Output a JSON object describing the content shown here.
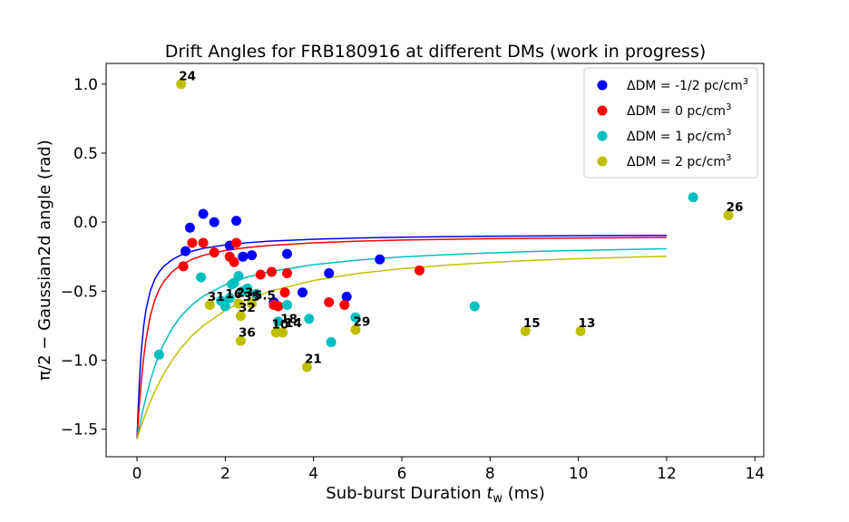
{
  "chart_data": {
    "type": "scatter",
    "title": "Drift Angles for FRB180916 at different DMs (work in progress)",
    "xlabel": "Sub-burst Duration ",
    "xlabel_var": "t",
    "xlabel_sub": "w",
    "xlabel_unit": " (ms)",
    "ylabel": "π/2 −  Gaussian2d angle (rad)",
    "xlim": [
      -0.7,
      14.2
    ],
    "ylim": [
      -1.7,
      1.15
    ],
    "xticks": [
      0,
      2,
      4,
      6,
      8,
      10,
      12,
      14
    ],
    "yticks": [
      -1.5,
      -1.0,
      -0.5,
      0.0,
      0.5,
      1.0
    ],
    "grid": false,
    "legend_position": "top-right",
    "series": [
      {
        "name": "ΔDM = -1/2 pc/cm",
        "name_sup": "3",
        "color": "#0000ff",
        "points": [
          [
            1.1,
            -0.21
          ],
          [
            1.2,
            -0.04
          ],
          [
            1.5,
            0.06
          ],
          [
            1.75,
            0.0
          ],
          [
            2.1,
            -0.17
          ],
          [
            2.25,
            0.01
          ],
          [
            2.4,
            -0.25
          ],
          [
            2.6,
            -0.24
          ],
          [
            3.1,
            -0.58
          ],
          [
            3.4,
            -0.23
          ],
          [
            3.75,
            -0.51
          ],
          [
            4.35,
            -0.37
          ],
          [
            4.75,
            -0.54
          ],
          [
            5.5,
            -0.27
          ]
        ],
        "curve": [
          [
            0.0,
            -1.571
          ],
          [
            0.025,
            -1.366
          ],
          [
            0.05,
            -1.187
          ],
          [
            0.075,
            -1.041
          ],
          [
            0.1,
            -0.925
          ],
          [
            0.15,
            -0.756
          ],
          [
            0.2,
            -0.641
          ],
          [
            0.3,
            -0.499
          ],
          [
            0.4,
            -0.416
          ],
          [
            0.5,
            -0.361
          ],
          [
            0.6,
            -0.322
          ],
          [
            0.8,
            -0.271
          ],
          [
            1.0,
            -0.238
          ],
          [
            1.25,
            -0.21
          ],
          [
            1.5,
            -0.19
          ],
          [
            2.0,
            -0.165
          ],
          [
            2.5,
            -0.149
          ],
          [
            3.0,
            -0.138
          ],
          [
            4.0,
            -0.124
          ],
          [
            5.0,
            -0.115
          ],
          [
            6.0,
            -0.109
          ],
          [
            7.0,
            -0.105
          ],
          [
            8.0,
            -0.102
          ],
          [
            9.0,
            -0.1
          ],
          [
            10.0,
            -0.098
          ],
          [
            11.0,
            -0.097
          ],
          [
            12.0,
            -0.096
          ]
        ]
      },
      {
        "name": "ΔDM = 0 pc/cm",
        "name_sup": "3",
        "color": "#ff0000",
        "points": [
          [
            1.05,
            -0.32
          ],
          [
            1.25,
            -0.15
          ],
          [
            1.5,
            -0.15
          ],
          [
            1.75,
            -0.22
          ],
          [
            2.1,
            -0.25
          ],
          [
            2.2,
            -0.29
          ],
          [
            2.25,
            -0.15
          ],
          [
            2.8,
            -0.38
          ],
          [
            3.05,
            -0.36
          ],
          [
            3.1,
            -0.6
          ],
          [
            3.2,
            -0.61
          ],
          [
            3.35,
            -0.51
          ],
          [
            3.4,
            -0.37
          ],
          [
            4.35,
            -0.58
          ],
          [
            4.7,
            -0.6
          ],
          [
            6.4,
            -0.35
          ]
        ],
        "curve": [
          [
            0.0,
            -1.571
          ],
          [
            0.025,
            -1.453
          ],
          [
            0.05,
            -1.34
          ],
          [
            0.075,
            -1.237
          ],
          [
            0.1,
            -1.143
          ],
          [
            0.15,
            -0.984
          ],
          [
            0.2,
            -0.858
          ],
          [
            0.3,
            -0.681
          ],
          [
            0.4,
            -0.567
          ],
          [
            0.5,
            -0.489
          ],
          [
            0.6,
            -0.433
          ],
          [
            0.8,
            -0.358
          ],
          [
            1.0,
            -0.31
          ],
          [
            1.25,
            -0.269
          ],
          [
            1.5,
            -0.241
          ],
          [
            2.0,
            -0.205
          ],
          [
            2.5,
            -0.184
          ],
          [
            3.0,
            -0.169
          ],
          [
            4.0,
            -0.15
          ],
          [
            5.0,
            -0.138
          ],
          [
            6.0,
            -0.13
          ],
          [
            7.0,
            -0.125
          ],
          [
            8.0,
            -0.12
          ],
          [
            9.0,
            -0.117
          ],
          [
            10.0,
            -0.115
          ],
          [
            11.0,
            -0.113
          ],
          [
            12.0,
            -0.111
          ]
        ]
      },
      {
        "name": "ΔDM = 1 pc/cm",
        "name_sup": "3",
        "color": "#00bfbf",
        "points": [
          [
            0.5,
            -0.96
          ],
          [
            1.45,
            -0.4
          ],
          [
            1.9,
            -0.57
          ],
          [
            2.0,
            -0.61
          ],
          [
            2.1,
            -0.55
          ],
          [
            2.15,
            -0.45
          ],
          [
            2.2,
            -0.44
          ],
          [
            2.3,
            -0.39
          ],
          [
            2.4,
            -0.5
          ],
          [
            2.5,
            -0.48
          ],
          [
            2.7,
            -0.52
          ],
          [
            3.2,
            -0.72
          ],
          [
            3.4,
            -0.6
          ],
          [
            3.9,
            -0.7
          ],
          [
            4.4,
            -0.87
          ],
          [
            4.95,
            -0.69
          ],
          [
            7.65,
            -0.61
          ],
          [
            12.6,
            0.18
          ]
        ],
        "curve": [
          [
            0.0,
            -1.571
          ],
          [
            0.05,
            -1.49
          ],
          [
            0.1,
            -1.412
          ],
          [
            0.15,
            -1.339
          ],
          [
            0.2,
            -1.271
          ],
          [
            0.3,
            -1.15
          ],
          [
            0.4,
            -1.047
          ],
          [
            0.5,
            -0.96
          ],
          [
            0.6,
            -0.886
          ],
          [
            0.8,
            -0.768
          ],
          [
            1.0,
            -0.68
          ],
          [
            1.25,
            -0.598
          ],
          [
            1.5,
            -0.537
          ],
          [
            2.0,
            -0.453
          ],
          [
            2.5,
            -0.398
          ],
          [
            3.0,
            -0.359
          ],
          [
            4.0,
            -0.308
          ],
          [
            5.0,
            -0.275
          ],
          [
            6.0,
            -0.252
          ],
          [
            7.0,
            -0.236
          ],
          [
            8.0,
            -0.223
          ],
          [
            9.0,
            -0.213
          ],
          [
            10.0,
            -0.205
          ],
          [
            11.0,
            -0.199
          ],
          [
            12.0,
            -0.193
          ]
        ]
      },
      {
        "name": "ΔDM = 2 pc/cm",
        "name_sup": "3",
        "color": "#bfbf00",
        "points": [
          [
            1.0,
            1.0
          ],
          [
            1.65,
            -0.6
          ],
          [
            2.3,
            -0.59
          ],
          [
            2.35,
            -0.68
          ],
          [
            2.35,
            -0.86
          ],
          [
            2.6,
            -0.59
          ],
          [
            3.15,
            -0.8
          ],
          [
            3.3,
            -0.8
          ],
          [
            3.85,
            -1.05
          ],
          [
            4.95,
            -0.78
          ],
          [
            8.8,
            -0.79
          ],
          [
            10.05,
            -0.79
          ],
          [
            13.4,
            0.05
          ]
        ],
        "curve": [
          [
            0.0,
            -1.571
          ],
          [
            0.1,
            -1.472
          ],
          [
            0.2,
            -1.382
          ],
          [
            0.3,
            -1.302
          ],
          [
            0.4,
            -1.229
          ],
          [
            0.5,
            -1.163
          ],
          [
            0.6,
            -1.103
          ],
          [
            0.8,
            -0.999
          ],
          [
            1.0,
            -0.911
          ],
          [
            1.25,
            -0.822
          ],
          [
            1.5,
            -0.75
          ],
          [
            2.0,
            -0.639
          ],
          [
            2.5,
            -0.561
          ],
          [
            3.0,
            -0.502
          ],
          [
            4.0,
            -0.423
          ],
          [
            5.0,
            -0.372
          ],
          [
            6.0,
            -0.337
          ],
          [
            7.0,
            -0.312
          ],
          [
            8.0,
            -0.292
          ],
          [
            9.0,
            -0.277
          ],
          [
            10.0,
            -0.265
          ],
          [
            11.0,
            -0.255
          ],
          [
            12.0,
            -0.247
          ]
        ]
      }
    ],
    "annotations": [
      {
        "text": "24",
        "x": 0.95,
        "y": 1.03
      },
      {
        "text": "26",
        "x": 13.35,
        "y": 0.08
      },
      {
        "text": "31",
        "x": 1.6,
        "y": -0.57
      },
      {
        "text": "16",
        "x": 2.0,
        "y": -0.55
      },
      {
        "text": "23",
        "x": 2.25,
        "y": -0.54
      },
      {
        "text": "35",
        "x": 2.4,
        "y": -0.57
      },
      {
        "text": "5.5",
        "x": 2.65,
        "y": -0.56
      },
      {
        "text": "32",
        "x": 2.3,
        "y": -0.65
      },
      {
        "text": "18",
        "x": 3.25,
        "y": -0.73
      },
      {
        "text": "14",
        "x": 3.35,
        "y": -0.76
      },
      {
        "text": "10",
        "x": 3.05,
        "y": -0.77
      },
      {
        "text": "29",
        "x": 4.9,
        "y": -0.75
      },
      {
        "text": "36",
        "x": 2.3,
        "y": -0.83
      },
      {
        "text": "21",
        "x": 3.8,
        "y": -1.02
      },
      {
        "text": "15",
        "x": 8.75,
        "y": -0.76
      },
      {
        "text": "13",
        "x": 10.0,
        "y": -0.76
      }
    ]
  }
}
